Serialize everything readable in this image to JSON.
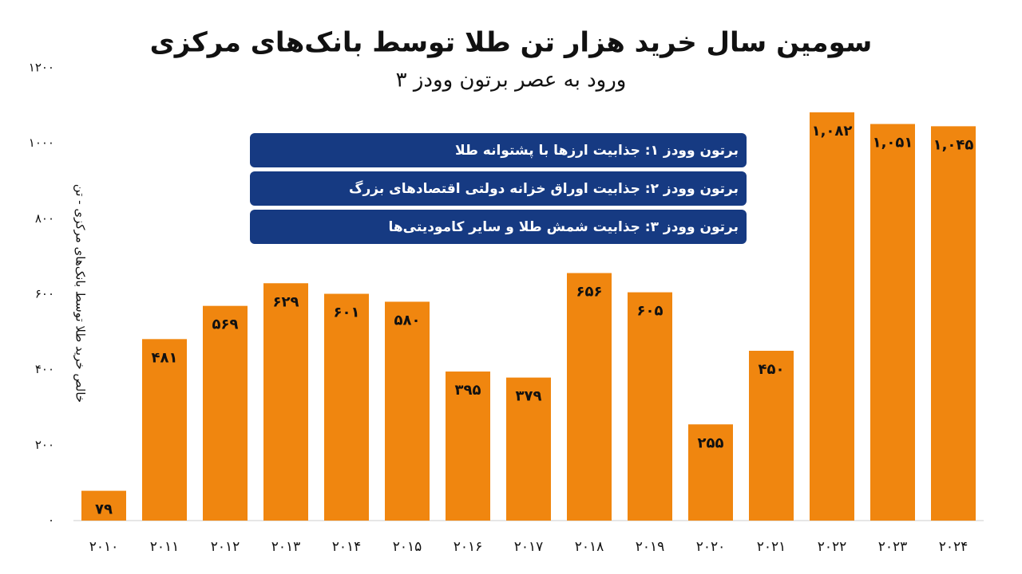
{
  "chart_data": {
    "type": "bar",
    "title": "سومین سال خرید هزار تن طلا توسط بانک‌های مرکزی",
    "subtitle": "ورود به عصر برتون وودز ۳",
    "y_label": "خالص خرید طلا توسط بانک‌های مرکزی - تن",
    "annotations": [
      "برتون وودز ۱: جذابیت ارزها با پشتوانه طلا",
      "برتون وودز ۲: جذابیت اوراق خزانه دولتی اقتصادهای بزرگ",
      "برتون وودز ۳: جذابیت شمش طلا و سایر کامودیتی‌ها"
    ],
    "categories": [
      "۲۰۱۰",
      "۲۰۱۱",
      "۲۰۱۲",
      "۲۰۱۳",
      "۲۰۱۴",
      "۲۰۱۵",
      "۲۰۱۶",
      "۲۰۱۷",
      "۲۰۱۸",
      "۲۰۱۹",
      "۲۰۲۰",
      "۲۰۲۱",
      "۲۰۲۲",
      "۲۰۲۳",
      "۲۰۲۴"
    ],
    "values": [
      79,
      481,
      569,
      629,
      601,
      580,
      395,
      379,
      656,
      605,
      255,
      450,
      1082,
      1051,
      1045
    ],
    "value_labels": [
      "۷۹",
      "۴۸۱",
      "۵۶۹",
      "۶۲۹",
      "۶۰۱",
      "۵۸۰",
      "۳۹۵",
      "۳۷۹",
      "۶۵۶",
      "۶۰۵",
      "۲۵۵",
      "۴۵۰",
      "۱,۰۸۲",
      "۱,۰۵۱",
      "۱,۰۴۵"
    ],
    "color": "#f0860f",
    "ylim": [
      0,
      1200
    ],
    "yticks": [
      {
        "value": 0,
        "label": "۰"
      },
      {
        "value": 200,
        "label": "۲۰۰"
      },
      {
        "value": 400,
        "label": "۴۰۰"
      },
      {
        "value": 600,
        "label": "۶۰۰"
      },
      {
        "value": 800,
        "label": "۸۰۰"
      },
      {
        "value": 1000,
        "label": "۱۰۰۰"
      },
      {
        "value": 1200,
        "label": "۱۲۰۰"
      }
    ],
    "grid": false
  }
}
